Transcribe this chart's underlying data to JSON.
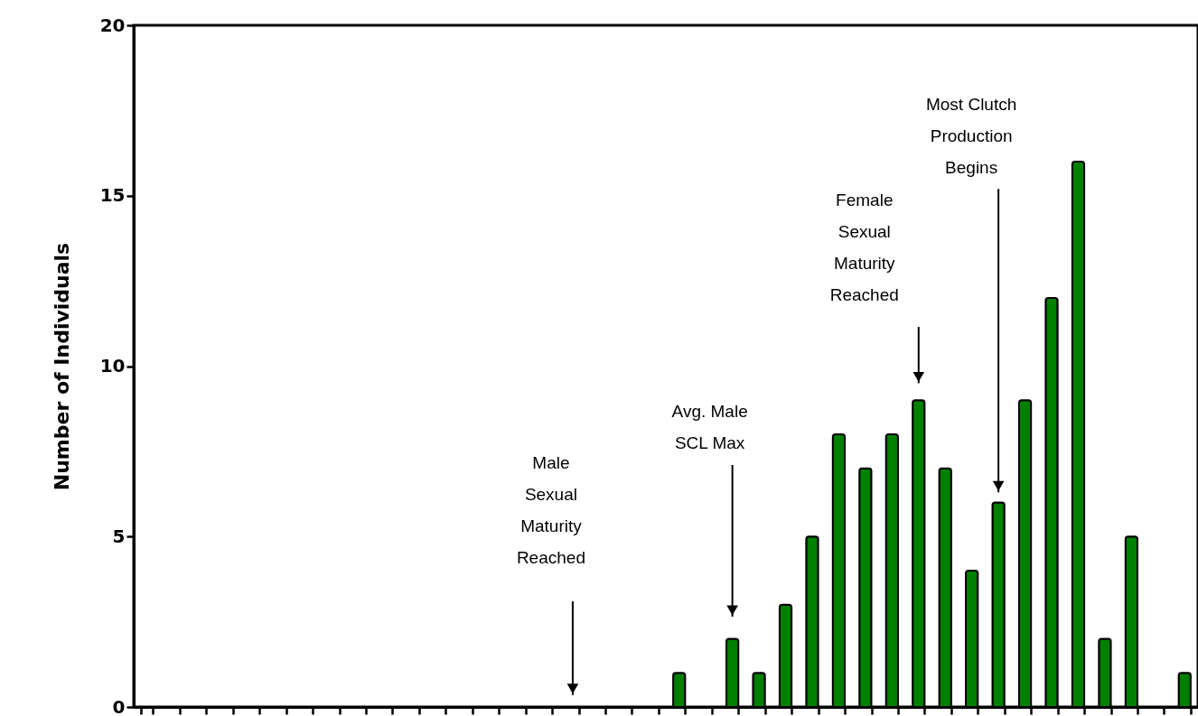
{
  "chart_data": {
    "type": "bar",
    "ylabel": "Number of Individuals",
    "categories": [
      null,
      null,
      null,
      null,
      null,
      null,
      null,
      null,
      null,
      null,
      null,
      null,
      null,
      null,
      null,
      null,
      null,
      null,
      null,
      null,
      null,
      null,
      null,
      null,
      null,
      null,
      null,
      null,
      null,
      null,
      null,
      null,
      null,
      null,
      null,
      null,
      null,
      null,
      null,
      null
    ],
    "values": [
      0,
      0,
      0,
      0,
      0,
      0,
      0,
      0,
      0,
      0,
      0,
      0,
      0,
      0,
      0,
      0,
      0,
      0,
      0,
      0,
      1,
      0,
      2,
      1,
      3,
      5,
      8,
      7,
      8,
      9,
      7,
      4,
      6,
      9,
      12,
      16,
      2,
      5,
      0,
      1
    ],
    "color": "#008000",
    "ylim": [
      0,
      20
    ],
    "yticks": [
      0,
      5,
      10,
      15,
      20
    ],
    "grid": false,
    "tick_labels": "y",
    "annotations": [
      "Male\nSexual\nMaturity\nReached",
      "Avg. Male\nSCL Max",
      "Female\nSexual\nMaturity\nReached",
      "Most Clutch\nProduction\nBegins"
    ]
  }
}
